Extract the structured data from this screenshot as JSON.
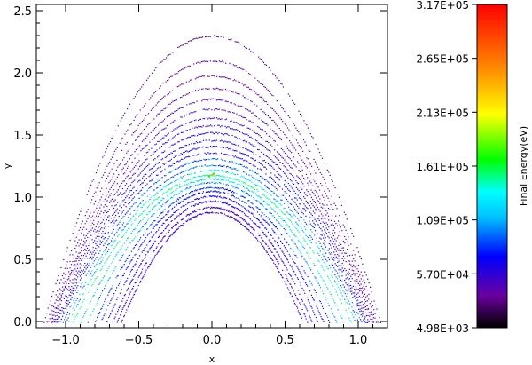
{
  "chart_data": {
    "type": "scatter",
    "title": "",
    "xlabel": "x",
    "ylabel": "y",
    "xlim": [
      -1.2,
      1.2
    ],
    "ylim": [
      -0.05,
      2.55
    ],
    "x_ticks": [
      -1.0,
      -0.5,
      0.0,
      0.5,
      1.0
    ],
    "x_tick_labels": [
      "−1.0",
      "−0.5",
      "0.0",
      "0.5",
      "1.0"
    ],
    "y_ticks": [
      0.0,
      0.5,
      1.0,
      1.5,
      2.0,
      2.5
    ],
    "y_tick_labels": [
      "0.0",
      "0.5",
      "1.0",
      "1.5",
      "2.0",
      "2.5"
    ],
    "grid": false,
    "colorbar": {
      "label": "Final Energy(eV)",
      "colormap": "rainbow",
      "range": [
        4980,
        317000
      ],
      "tick_values": [
        4980,
        57000,
        109000,
        161000,
        213000,
        265000,
        317000
      ],
      "tick_labels": [
        "4.98E+03",
        "5.70E+04",
        "1.09E+05",
        "1.61E+05",
        "2.13E+05",
        "2.65E+05",
        "3.17E+05"
      ]
    },
    "point_color_scale": {
      "stops": [
        {
          "v": 4980,
          "c": "#000000"
        },
        {
          "v": 35000,
          "c": "#6a00a0"
        },
        {
          "v": 75000,
          "c": "#0000ff"
        },
        {
          "v": 109000,
          "c": "#00ffff"
        },
        {
          "v": 150000,
          "c": "#00ff00"
        },
        {
          "v": 200000,
          "c": "#ffff00"
        },
        {
          "v": 250000,
          "c": "#ff8c00"
        },
        {
          "v": 317000,
          "c": "#ff0000"
        }
      ]
    },
    "series": [
      {
        "type": "curve",
        "apex_y": 0.88,
        "half_width": 0.62,
        "energy": 55000
      },
      {
        "type": "curve",
        "apex_y": 0.92,
        "half_width": 0.65,
        "energy": 50000
      },
      {
        "type": "curve",
        "apex_y": 0.97,
        "half_width": 0.68,
        "energy": 60000
      },
      {
        "type": "curve",
        "apex_y": 1.01,
        "half_width": 0.72,
        "energy": 65000
      },
      {
        "type": "curve",
        "apex_y": 1.05,
        "half_width": 0.76,
        "energy": 72000
      },
      {
        "type": "curve",
        "apex_y": 1.08,
        "half_width": 0.8,
        "energy": 80000
      },
      {
        "type": "curve",
        "apex_y": 1.12,
        "half_width": 0.85,
        "energy": 95000
      },
      {
        "type": "curve",
        "apex_y": 1.15,
        "half_width": 0.9,
        "energy": 110000
      },
      {
        "type": "curve",
        "apex_y": 1.18,
        "half_width": 0.95,
        "energy": 125000
      },
      {
        "type": "curve",
        "apex_y": 1.22,
        "half_width": 0.98,
        "energy": 105000
      },
      {
        "type": "curve",
        "apex_y": 1.26,
        "half_width": 1.0,
        "energy": 90000
      },
      {
        "type": "curve",
        "apex_y": 1.31,
        "half_width": 1.02,
        "energy": 85000
      },
      {
        "type": "curve",
        "apex_y": 1.36,
        "half_width": 1.04,
        "energy": 70000
      },
      {
        "type": "curve",
        "apex_y": 1.41,
        "half_width": 1.05,
        "energy": 65000
      },
      {
        "type": "curve",
        "apex_y": 1.46,
        "half_width": 1.06,
        "energy": 72000
      },
      {
        "type": "curve",
        "apex_y": 1.52,
        "half_width": 1.07,
        "energy": 60000
      },
      {
        "type": "curve",
        "apex_y": 1.58,
        "half_width": 1.08,
        "energy": 55000
      },
      {
        "type": "curve",
        "apex_y": 1.64,
        "half_width": 1.09,
        "energy": 50000
      },
      {
        "type": "curve",
        "apex_y": 1.71,
        "half_width": 1.1,
        "energy": 45000
      },
      {
        "type": "curve",
        "apex_y": 1.79,
        "half_width": 1.1,
        "energy": 42000
      },
      {
        "type": "curve",
        "apex_y": 1.88,
        "half_width": 1.11,
        "energy": 38000
      },
      {
        "type": "curve",
        "apex_y": 1.98,
        "half_width": 1.12,
        "energy": 35000
      },
      {
        "type": "curve",
        "apex_y": 2.1,
        "half_width": 1.13,
        "energy": 32000
      },
      {
        "type": "curve",
        "apex_y": 2.3,
        "half_width": 1.15,
        "energy": 28000
      }
    ],
    "highlight_points": [
      {
        "x": 0.0,
        "y": 1.18,
        "energy": 230000
      },
      {
        "x": 0.01,
        "y": 1.19,
        "energy": 160000
      },
      {
        "x": -0.02,
        "y": 1.17,
        "energy": 150000
      }
    ]
  }
}
